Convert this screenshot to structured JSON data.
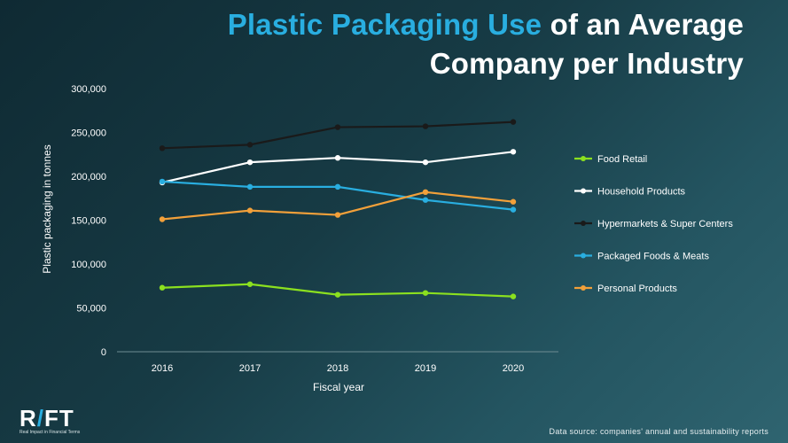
{
  "title": {
    "accent": "Plastic Packaging Use",
    "rest_line1": " of an Average",
    "line2": "Company per Industry"
  },
  "logo": {
    "text_r": "R",
    "text_slash": "/",
    "text_ft": "FT",
    "tagline": "Real Impact in Financial Terms"
  },
  "source": "Data source: companies' annual and sustainability reports",
  "chart_data": {
    "type": "line",
    "title": "Plastic Packaging Use of an Average Company per Industry",
    "xlabel": "Fiscal year",
    "ylabel": "Plastic packaging in tonnes",
    "x": [
      "2016",
      "2017",
      "2018",
      "2019",
      "2020"
    ],
    "ylim": [
      0,
      300000
    ],
    "yticks": [
      0,
      50000,
      100000,
      150000,
      200000,
      250000,
      300000
    ],
    "ytick_labels": [
      "0",
      "50,000",
      "100,000",
      "150,000",
      "200,000",
      "250,000",
      "300,000"
    ],
    "legend_position": "right",
    "series": [
      {
        "name": "Food Retail",
        "color": "#8be01f",
        "values": [
          73000,
          77000,
          65000,
          67000,
          63000
        ]
      },
      {
        "name": "Household Products",
        "color": "#ffffff",
        "values": [
          193000,
          216000,
          221000,
          216000,
          228000
        ]
      },
      {
        "name": "Hypermarkets & Super Centers",
        "color": "#1a1a1a",
        "values": [
          232000,
          236000,
          256000,
          257000,
          262000
        ]
      },
      {
        "name": "Packaged Foods & Meats",
        "color": "#29aee0",
        "values": [
          194000,
          188000,
          188000,
          173000,
          162000
        ]
      },
      {
        "name": "Personal Products",
        "color": "#f2a03a",
        "values": [
          151000,
          161000,
          156000,
          182000,
          171000
        ]
      }
    ]
  }
}
